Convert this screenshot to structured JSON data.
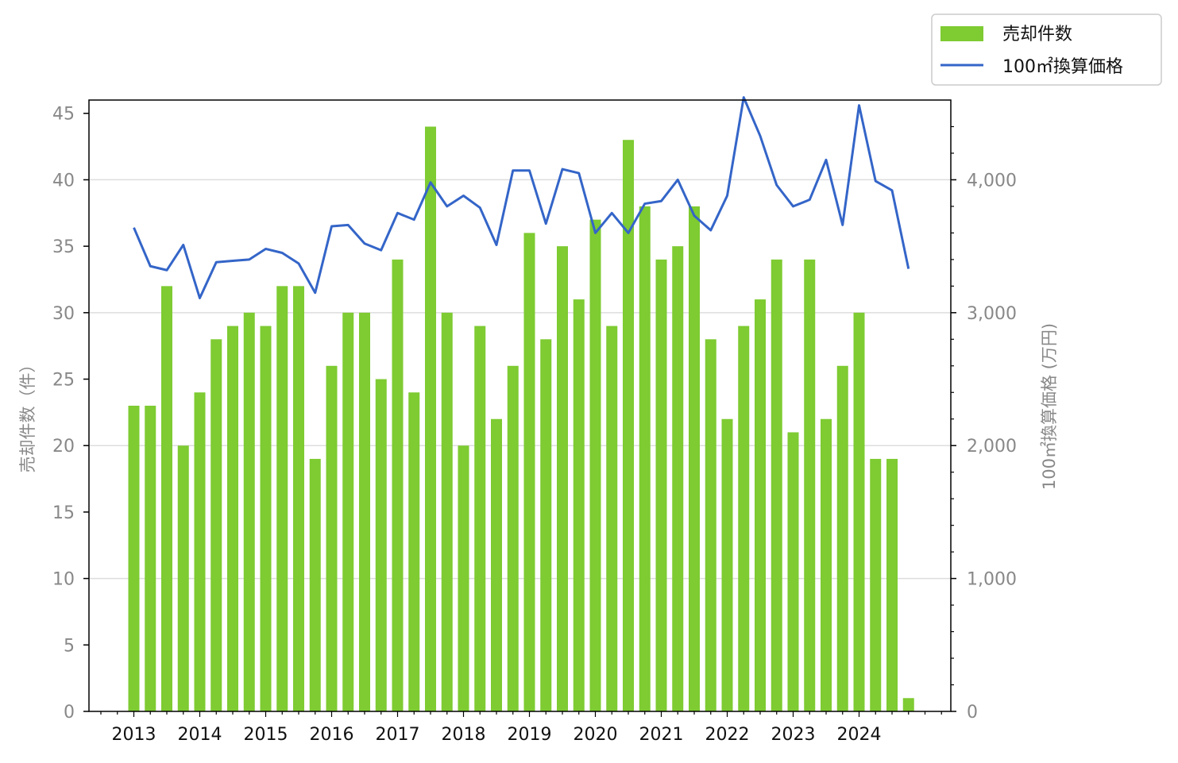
{
  "chart_data": {
    "type": "bar",
    "x_tick_labels": [
      "2013",
      "2014",
      "2015",
      "2016",
      "2017",
      "2018",
      "2019",
      "2020",
      "2021",
      "2022",
      "2023",
      "2024"
    ],
    "left_axis": {
      "label": "売却件数（件）",
      "ylim": [
        0,
        46
      ],
      "ticks": [
        "0",
        "5",
        "10",
        "15",
        "20",
        "25",
        "30",
        "35",
        "40",
        "45"
      ]
    },
    "right_axis": {
      "label": "100㎡換算価格 (万円)",
      "ylim": [
        0,
        4600
      ],
      "ticks": [
        "0",
        "1,000",
        "2,000",
        "3,000",
        "4,000"
      ]
    },
    "grid": "horizontal",
    "legend": {
      "placement": "top-right",
      "entries": [
        "売却件数",
        "100㎡換算価格"
      ]
    },
    "colors": {
      "bars": "#7ecb32",
      "line": "#3465c8"
    },
    "series": [
      {
        "name": "売却件数",
        "kind": "bar",
        "axis": "left",
        "values": [
          23,
          23,
          32,
          20,
          24,
          28,
          29,
          30,
          29,
          32,
          32,
          19,
          26,
          30,
          30,
          25,
          34,
          24,
          44,
          30,
          20,
          29,
          22,
          26,
          36,
          28,
          35,
          31,
          37,
          29,
          43,
          38,
          34,
          35,
          38,
          28,
          22,
          29,
          31,
          34,
          21,
          34,
          22,
          26,
          30,
          19,
          19,
          1
        ]
      },
      {
        "name": "100㎡換算価格",
        "kind": "line",
        "axis": "right",
        "values": [
          3640,
          3350,
          3320,
          3510,
          3110,
          3380,
          3390,
          3400,
          3480,
          3450,
          3370,
          3150,
          3650,
          3660,
          3520,
          3470,
          3750,
          3700,
          3980,
          3800,
          3880,
          3790,
          3510,
          4070,
          4070,
          3670,
          4080,
          4050,
          3600,
          3750,
          3600,
          3820,
          3840,
          4000,
          3730,
          3620,
          3880,
          4620,
          4330,
          3960,
          3800,
          3850,
          4150,
          3660,
          4560,
          3990,
          3920,
          3330
        ]
      }
    ]
  }
}
